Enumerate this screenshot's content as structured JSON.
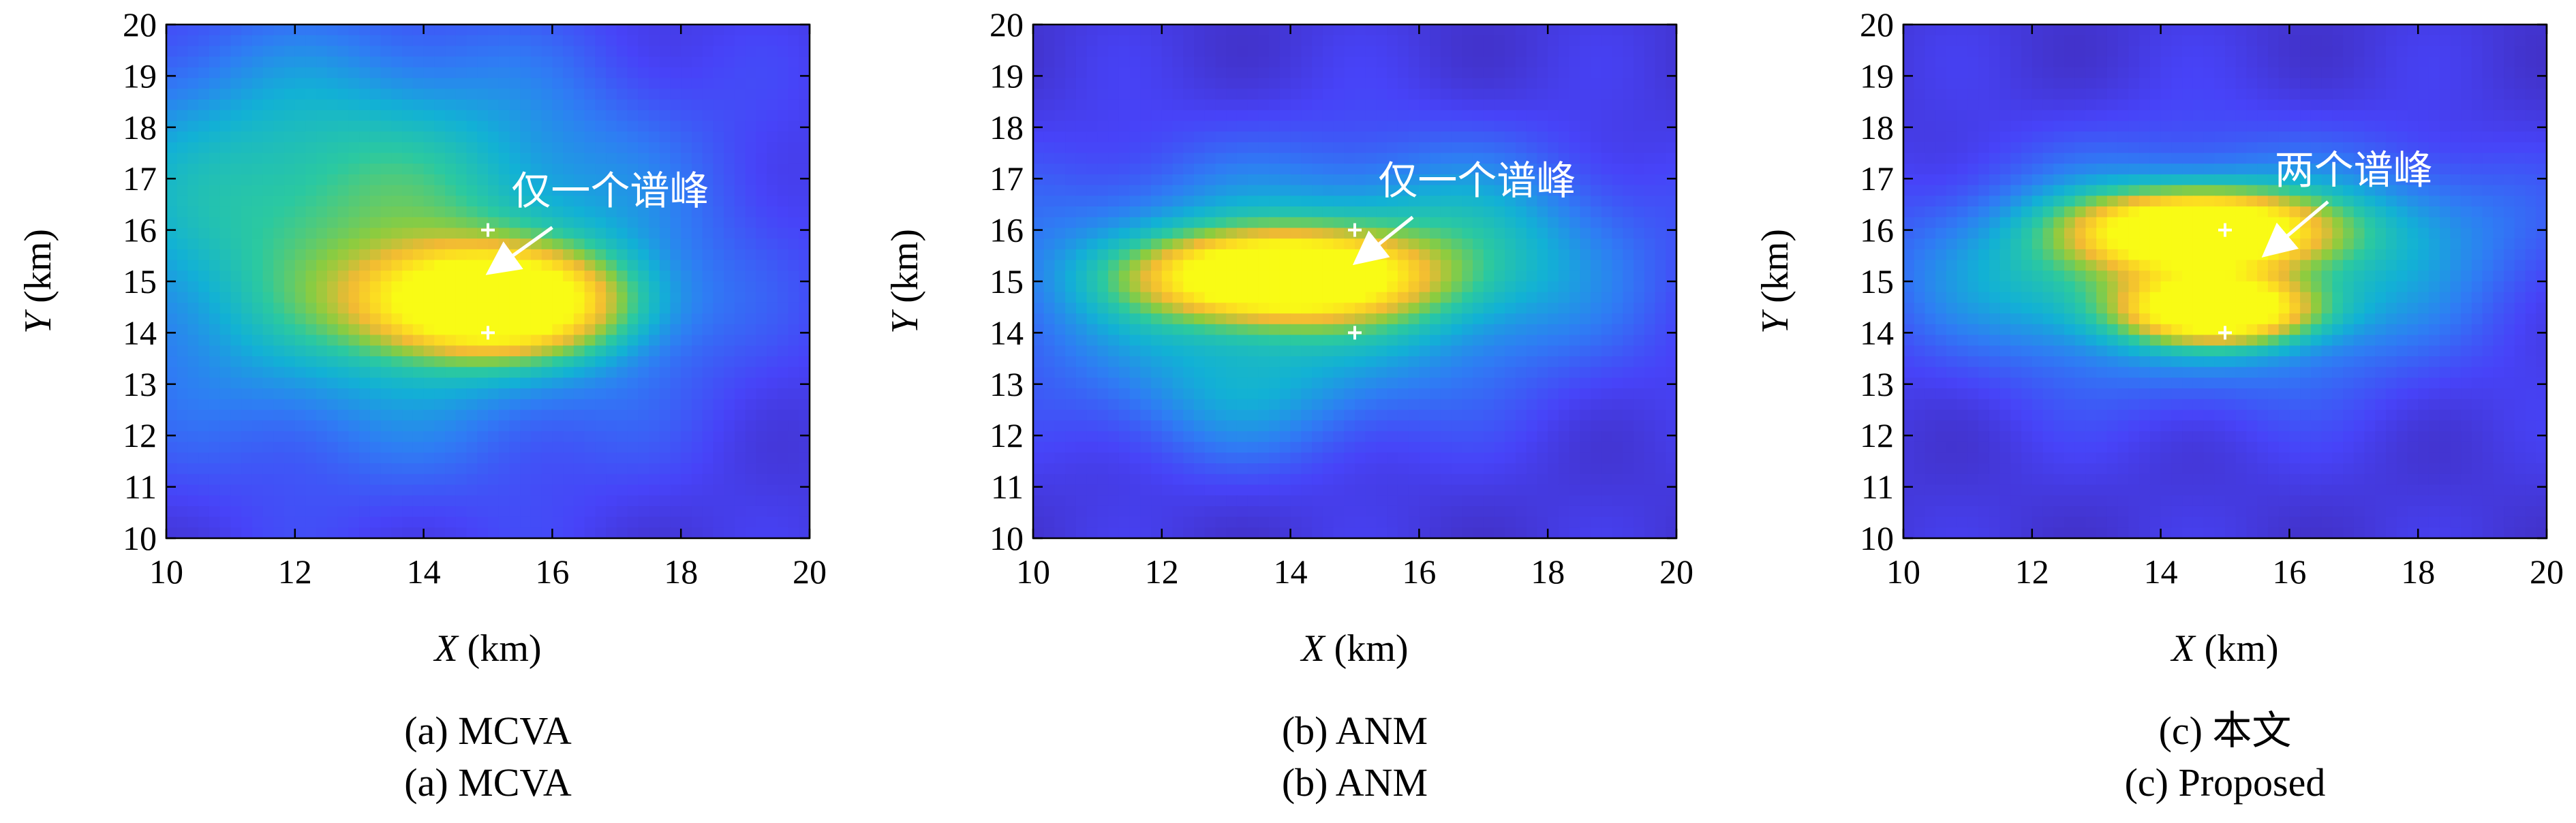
{
  "chart_data": [
    {
      "type": "heatmap",
      "panel": "a",
      "xlabel_var": "X",
      "xlabel_unit": "(km)",
      "ylabel_var": "Y",
      "ylabel_unit": "(km)",
      "xlim": [
        10,
        20
      ],
      "ylim": [
        10,
        20
      ],
      "xticks": [
        10,
        12,
        14,
        16,
        18,
        20
      ],
      "yticks": [
        10,
        11,
        12,
        13,
        14,
        15,
        16,
        17,
        18,
        19,
        20
      ],
      "grid": false,
      "caption_lines": [
        "(a) MCVA",
        "(a) MCVA"
      ],
      "annotation": {
        "text": "仅一个谱峰",
        "text_x": 16.9,
        "text_y": 16.5,
        "arrow_from": [
          16.0,
          16.05
        ],
        "arrow_to": [
          15.05,
          15.2
        ]
      },
      "markers": [
        {
          "x": 15,
          "y": 16
        },
        {
          "x": 15,
          "y": 14
        }
      ],
      "peaks": [
        {
          "x": 15.1,
          "y": 14.6,
          "sx": 1.35,
          "sy": 0.7,
          "a": 1.0
        }
      ],
      "background_blobs": [
        {
          "x": 13.5,
          "y": 15.5,
          "sx": 3.2,
          "sy": 2.6,
          "a": 0.42
        },
        {
          "x": 11.5,
          "y": 17.5,
          "sx": 2.5,
          "sy": 1.8,
          "a": 0.12
        }
      ]
    },
    {
      "type": "heatmap",
      "panel": "b",
      "xlabel_var": "X",
      "xlabel_unit": "(km)",
      "ylabel_var": "Y",
      "ylabel_unit": "(km)",
      "xlim": [
        10,
        20
      ],
      "ylim": [
        10,
        20
      ],
      "xticks": [
        10,
        12,
        14,
        16,
        18,
        20
      ],
      "yticks": [
        10,
        11,
        12,
        13,
        14,
        15,
        16,
        17,
        18,
        19,
        20
      ],
      "grid": false,
      "caption_lines": [
        "(b) ANM",
        "(b) ANM"
      ],
      "annotation": {
        "text": "仅一个谱峰",
        "text_x": 16.9,
        "text_y": 16.7,
        "arrow_from": [
          15.9,
          16.25
        ],
        "arrow_to": [
          15.05,
          15.4
        ]
      },
      "markers": [
        {
          "x": 15,
          "y": 16
        },
        {
          "x": 15,
          "y": 14
        }
      ],
      "peaks": [
        {
          "x": 13.8,
          "y": 15.1,
          "sx": 1.4,
          "sy": 0.55,
          "a": 1.0
        }
      ],
      "background_blobs": [
        {
          "x": 14.0,
          "y": 15.0,
          "sx": 3.2,
          "sy": 1.6,
          "a": 0.38
        },
        {
          "x": 16.8,
          "y": 15.8,
          "sx": 1.6,
          "sy": 1.2,
          "a": 0.16
        },
        {
          "x": 13.2,
          "y": 12.6,
          "sx": 1.5,
          "sy": 0.9,
          "a": 0.14
        }
      ]
    },
    {
      "type": "heatmap",
      "panel": "c",
      "xlabel_var": "X",
      "xlabel_unit": "(km)",
      "ylabel_var": "Y",
      "ylabel_unit": "(km)",
      "xlim": [
        10,
        20
      ],
      "ylim": [
        10,
        20
      ],
      "xticks": [
        10,
        12,
        14,
        16,
        18,
        20
      ],
      "yticks": [
        10,
        11,
        12,
        13,
        14,
        15,
        16,
        17,
        18,
        19,
        20
      ],
      "grid": false,
      "caption_lines": [
        "(c) 本文",
        "(c) Proposed"
      ],
      "annotation": {
        "text": "两个谱峰",
        "text_x": 17.0,
        "text_y": 16.9,
        "arrow_from": [
          16.6,
          16.55
        ],
        "arrow_to": [
          15.65,
          15.55
        ]
      },
      "markers": [
        {
          "x": 15,
          "y": 16
        },
        {
          "x": 15,
          "y": 14
        }
      ],
      "peaks": [
        {
          "x": 14.6,
          "y": 16.0,
          "sx": 1.25,
          "sy": 0.5,
          "a": 1.0
        },
        {
          "x": 14.9,
          "y": 14.45,
          "sx": 0.95,
          "sy": 0.42,
          "a": 0.92
        }
      ],
      "background_blobs": [
        {
          "x": 14.8,
          "y": 15.2,
          "sx": 2.6,
          "sy": 1.5,
          "a": 0.42
        },
        {
          "x": 12.0,
          "y": 15.2,
          "sx": 1.8,
          "sy": 1.0,
          "a": 0.12
        },
        {
          "x": 18.2,
          "y": 16.2,
          "sx": 1.4,
          "sy": 0.9,
          "a": 0.1
        }
      ]
    }
  ],
  "colormap": [
    "#3e26a8",
    "#4743f8",
    "#2f7cf4",
    "#12b1d5",
    "#2bc9a0",
    "#8ccc3f",
    "#f1b934",
    "#fcdc22",
    "#f9fb15"
  ],
  "marker_color": "#ffffff",
  "annotation_color": "#ffffff"
}
